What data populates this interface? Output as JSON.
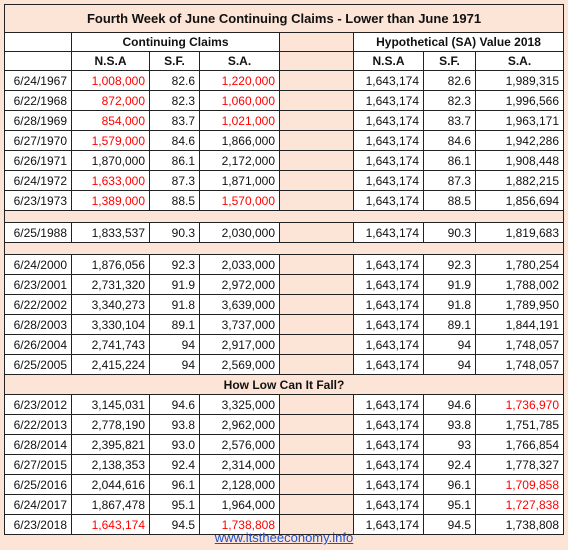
{
  "title": "Fourth Week of June Continuing Claims - Lower than June 1971",
  "group_headers": [
    "Continuing Claims",
    "Hypothetical (SA) Value 2018"
  ],
  "column_headers": [
    "N.S.A",
    "S.F.",
    "S.A.",
    "N.S.A",
    "S.F.",
    "S.A."
  ],
  "highlight_color": "#ff0000",
  "sections": [
    {
      "rows": [
        {
          "cells": [
            "6/24/1967",
            "1,008,000",
            "82.6",
            "1,220,000",
            "1,643,174",
            "82.6",
            "1,989,315"
          ],
          "red": [
            false,
            true,
            false,
            true,
            false,
            false,
            false
          ]
        },
        {
          "cells": [
            "6/22/1968",
            "872,000",
            "82.3",
            "1,060,000",
            "1,643,174",
            "82.3",
            "1,996,566"
          ],
          "red": [
            false,
            true,
            false,
            true,
            false,
            false,
            false
          ]
        },
        {
          "cells": [
            "6/28/1969",
            "854,000",
            "83.7",
            "1,021,000",
            "1,643,174",
            "83.7",
            "1,963,171"
          ],
          "red": [
            false,
            true,
            false,
            true,
            false,
            false,
            false
          ]
        },
        {
          "cells": [
            "6/27/1970",
            "1,579,000",
            "84.6",
            "1,866,000",
            "1,643,174",
            "84.6",
            "1,942,286"
          ],
          "red": [
            false,
            true,
            false,
            false,
            false,
            false,
            false
          ]
        },
        {
          "cells": [
            "6/26/1971",
            "1,870,000",
            "86.1",
            "2,172,000",
            "1,643,174",
            "86.1",
            "1,908,448"
          ],
          "red": [
            false,
            false,
            false,
            false,
            false,
            false,
            false
          ]
        },
        {
          "cells": [
            "6/24/1972",
            "1,633,000",
            "87.3",
            "1,871,000",
            "1,643,174",
            "87.3",
            "1,882,215"
          ],
          "red": [
            false,
            true,
            false,
            false,
            false,
            false,
            false
          ]
        },
        {
          "cells": [
            "6/23/1973",
            "1,389,000",
            "88.5",
            "1,570,000",
            "1,643,174",
            "88.5",
            "1,856,694"
          ],
          "red": [
            false,
            true,
            false,
            true,
            false,
            false,
            false
          ]
        }
      ]
    },
    {
      "rows": [
        {
          "cells": [
            "6/25/1988",
            "1,833,537",
            "90.3",
            "2,030,000",
            "1,643,174",
            "90.3",
            "1,819,683"
          ],
          "red": [
            false,
            false,
            false,
            false,
            false,
            false,
            false
          ]
        }
      ]
    },
    {
      "rows": [
        {
          "cells": [
            "6/24/2000",
            "1,876,056",
            "92.3",
            "2,033,000",
            "1,643,174",
            "92.3",
            "1,780,254"
          ],
          "red": [
            false,
            false,
            false,
            false,
            false,
            false,
            false
          ]
        },
        {
          "cells": [
            "6/23/2001",
            "2,731,320",
            "91.9",
            "2,972,000",
            "1,643,174",
            "91.9",
            "1,788,002"
          ],
          "red": [
            false,
            false,
            false,
            false,
            false,
            false,
            false
          ]
        },
        {
          "cells": [
            "6/22/2002",
            "3,340,273",
            "91.8",
            "3,639,000",
            "1,643,174",
            "91.8",
            "1,789,950"
          ],
          "red": [
            false,
            false,
            false,
            false,
            false,
            false,
            false
          ]
        },
        {
          "cells": [
            "6/28/2003",
            "3,330,104",
            "89.1",
            "3,737,000",
            "1,643,174",
            "89.1",
            "1,844,191"
          ],
          "red": [
            false,
            false,
            false,
            false,
            false,
            false,
            false
          ]
        },
        {
          "cells": [
            "6/26/2004",
            "2,741,743",
            "94",
            "2,917,000",
            "1,643,174",
            "94",
            "1,748,057"
          ],
          "red": [
            false,
            false,
            false,
            false,
            false,
            false,
            false
          ]
        },
        {
          "cells": [
            "6/25/2005",
            "2,415,224",
            "94",
            "2,569,000",
            "1,643,174",
            "94",
            "1,748,057"
          ],
          "red": [
            false,
            false,
            false,
            false,
            false,
            false,
            false
          ]
        }
      ]
    },
    {
      "heading": "How Low Can It Fall?",
      "rows": [
        {
          "cells": [
            "6/23/2012",
            "3,145,031",
            "94.6",
            "3,325,000",
            "1,643,174",
            "94.6",
            "1,736,970"
          ],
          "red": [
            false,
            false,
            false,
            false,
            false,
            false,
            true
          ]
        },
        {
          "cells": [
            "6/22/2013",
            "2,778,190",
            "93.8",
            "2,962,000",
            "1,643,174",
            "93.8",
            "1,751,785"
          ],
          "red": [
            false,
            false,
            false,
            false,
            false,
            false,
            false
          ]
        },
        {
          "cells": [
            "6/28/2014",
            "2,395,821",
            "93.0",
            "2,576,000",
            "1,643,174",
            "93",
            "1,766,854"
          ],
          "red": [
            false,
            false,
            false,
            false,
            false,
            false,
            false
          ]
        },
        {
          "cells": [
            "6/27/2015",
            "2,138,353",
            "92.4",
            "2,314,000",
            "1,643,174",
            "92.4",
            "1,778,327"
          ],
          "red": [
            false,
            false,
            false,
            false,
            false,
            false,
            false
          ]
        },
        {
          "cells": [
            "6/25/2016",
            "2,044,616",
            "96.1",
            "2,128,000",
            "1,643,174",
            "96.1",
            "1,709,858"
          ],
          "red": [
            false,
            false,
            false,
            false,
            false,
            false,
            true
          ]
        },
        {
          "cells": [
            "6/24/2017",
            "1,867,478",
            "95.1",
            "1,964,000",
            "1,643,174",
            "95.1",
            "1,727,838"
          ],
          "red": [
            false,
            false,
            false,
            false,
            false,
            false,
            true
          ]
        },
        {
          "cells": [
            "6/23/2018",
            "1,643,174",
            "94.5",
            "1,738,808",
            "1,643,174",
            "94.5",
            "1,738,808"
          ],
          "red": [
            false,
            true,
            false,
            true,
            false,
            false,
            false
          ]
        }
      ]
    }
  ],
  "footer": "www.itstheeconomy.info"
}
